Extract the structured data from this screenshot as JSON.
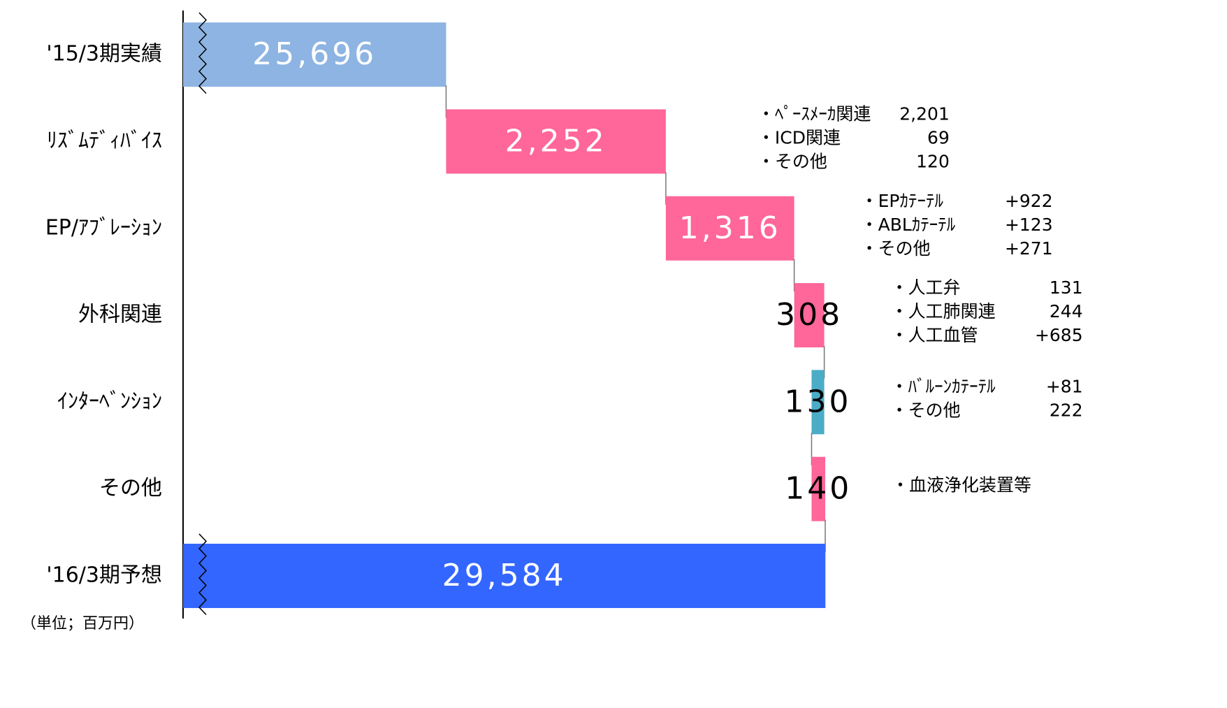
{
  "chart_data": {
    "type": "waterfall",
    "categories": [
      "'15/3期実績",
      "ﾘｽﾞﾑﾃﾞｨﾊﾞｲｽ",
      "EP/ｱﾌﾞﾚｰｼｮﾝ",
      "外科関連",
      "ｲﾝﾀｰﾍﾞﾝｼｮﾝ",
      "その他",
      "'16/3期予想"
    ],
    "values": [
      25696,
      2252,
      1316,
      308,
      -130,
      140,
      29584
    ],
    "value_labels": [
      "25,696",
      "2,252",
      "1,316",
      "308",
      "130",
      "140",
      "29,584"
    ],
    "measure": [
      "total",
      "relative",
      "relative",
      "relative",
      "relative",
      "relative",
      "total"
    ],
    "colors": [
      "#8db4e2",
      "#ff6699",
      "#ff6699",
      "#ff6699",
      "#4bacc6",
      "#ff6699",
      "#3366ff"
    ],
    "xlim": [
      23000,
      33700
    ],
    "axis_break": true,
    "notes": [
      null,
      [
        [
          "・ﾍﾟｰｽﾒｰｶ関連",
          "2,201"
        ],
        [
          "・ICD関連",
          "69"
        ],
        [
          "・その他",
          "120"
        ]
      ],
      [
        [
          "・EPｶﾃｰﾃﾙ",
          "+922"
        ],
        [
          "・ABLｶﾃｰﾃﾙ",
          "+123"
        ],
        [
          "・その他",
          "+271"
        ]
      ],
      [
        [
          "・人工弁",
          "131"
        ],
        [
          "・人工肺関連",
          "244"
        ],
        [
          "・人工血管",
          "+685"
        ]
      ],
      [
        [
          "・ﾊﾞﾙｰﾝｶﾃｰﾃﾙ",
          "+81"
        ],
        [
          "・その他",
          "222"
        ]
      ],
      [
        [
          "・血液浄化装置等",
          null
        ]
      ],
      null
    ],
    "unit_note": "（単位；百万円）"
  }
}
